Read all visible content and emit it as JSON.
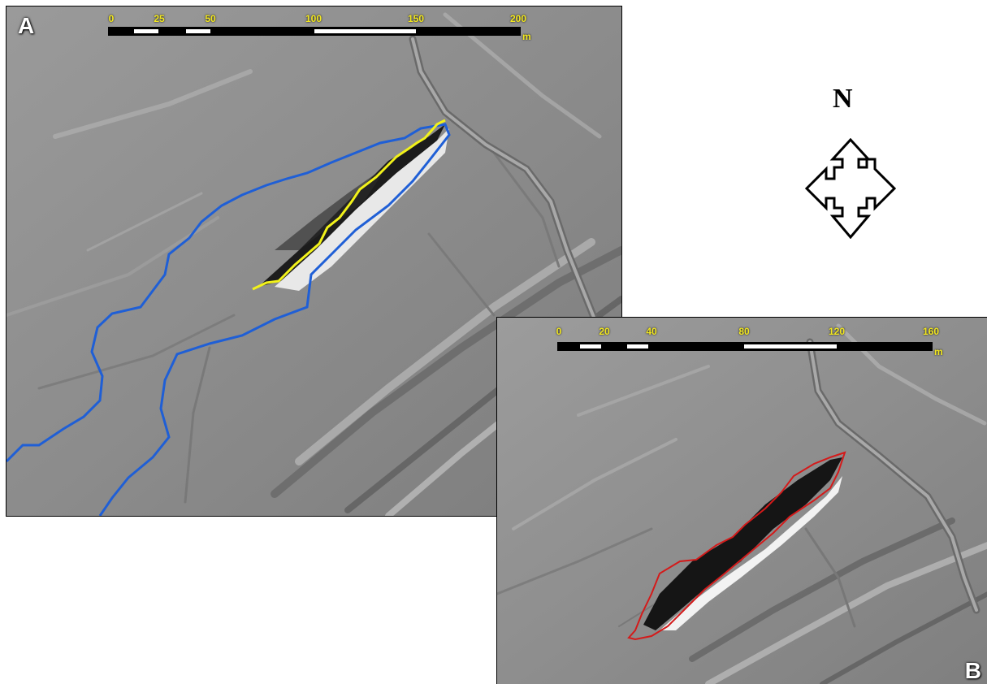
{
  "panel_a": {
    "letter": "A",
    "scale": {
      "ticks": [
        "0",
        "25",
        "50",
        "100",
        "150",
        "200"
      ],
      "unit": "m"
    },
    "outline_colors": {
      "watershed": "#1f5fd6",
      "scarp": "#f2f21a"
    }
  },
  "panel_b": {
    "letter": "B",
    "scale": {
      "ticks": [
        "0",
        "20",
        "40",
        "80",
        "120",
        "160"
      ],
      "unit": "m"
    },
    "outline_colors": {
      "landslide": "#d41a1a"
    }
  },
  "north": {
    "label": "N",
    "icon": "north-arrow-icon"
  }
}
